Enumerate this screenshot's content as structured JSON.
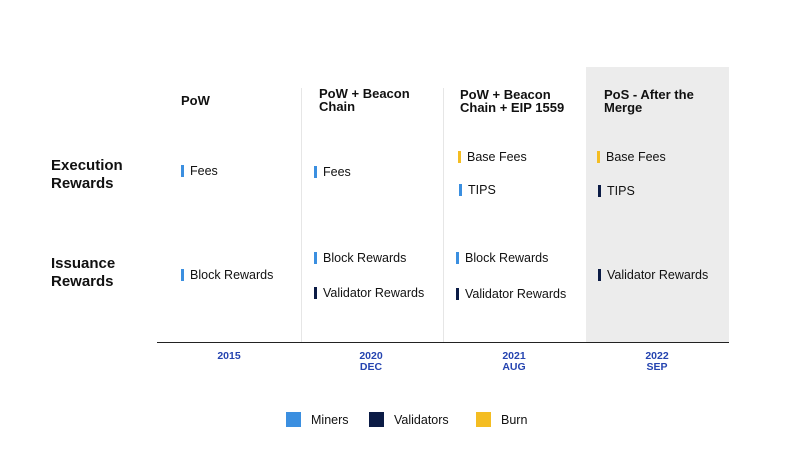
{
  "colors": {
    "miners": "#3b8fe0",
    "validators": "#0b1b45",
    "burn": "#f4bd22",
    "year_text": "#2544b0"
  },
  "columns": [
    {
      "title_line1": "PoW",
      "title_line2": "",
      "year": "2015",
      "month": ""
    },
    {
      "title_line1": "PoW + Beacon",
      "title_line2": "Chain",
      "year": "2020",
      "month": "DEC"
    },
    {
      "title_line1": "PoW + Beacon",
      "title_line2": "Chain + EIP 1559",
      "year": "2021",
      "month": "AUG"
    },
    {
      "title_line1": "PoS - After the",
      "title_line2": "Merge",
      "year": "2022",
      "month": "SEP"
    }
  ],
  "rows": {
    "execution": {
      "line1": "Execution",
      "line2": "Rewards"
    },
    "issuance": {
      "line1": "Issuance",
      "line2": "Rewards"
    }
  },
  "cells": {
    "execution": [
      [
        {
          "label": "Fees",
          "type": "miners"
        }
      ],
      [
        {
          "label": "Fees",
          "type": "miners"
        }
      ],
      [
        {
          "label": "Base Fees",
          "type": "burn"
        },
        {
          "label": "TIPS",
          "type": "miners"
        }
      ],
      [
        {
          "label": "Base Fees",
          "type": "burn"
        },
        {
          "label": "TIPS",
          "type": "validators"
        }
      ]
    ],
    "issuance": [
      [
        {
          "label": "Block Rewards",
          "type": "miners"
        }
      ],
      [
        {
          "label": "Block Rewards",
          "type": "miners"
        },
        {
          "label": "Validator Rewards",
          "type": "validators"
        }
      ],
      [
        {
          "label": "Block Rewards",
          "type": "miners"
        },
        {
          "label": "Validator Rewards",
          "type": "validators"
        }
      ],
      [
        {
          "label": "Validator Rewards",
          "type": "validators"
        }
      ]
    ]
  },
  "legend": [
    {
      "label": "Miners",
      "type": "miners"
    },
    {
      "label": "Validators",
      "type": "validators"
    },
    {
      "label": "Burn",
      "type": "burn"
    }
  ]
}
